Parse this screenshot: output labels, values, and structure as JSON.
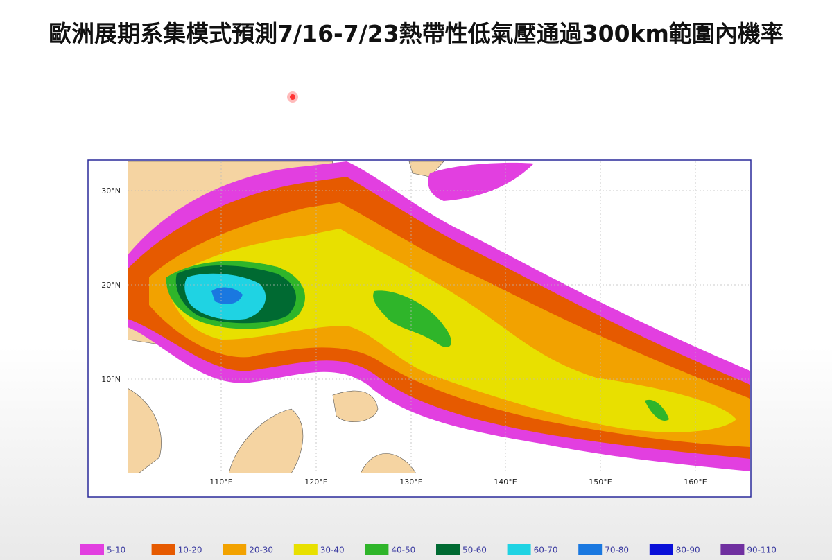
{
  "title": "歐洲展期系集模式預測7/16-7/23熱帶性低氣壓通過300km範圍內機率",
  "map": {
    "lat_labels": [
      "30°N",
      "20°N",
      "10°N"
    ],
    "lon_labels": [
      "110°E",
      "120°E",
      "130°E",
      "140°E",
      "150°E",
      "160°E"
    ]
  },
  "legend": [
    {
      "label": "5-10",
      "color": "#e23fe0"
    },
    {
      "label": "10-20",
      "color": "#e65a00"
    },
    {
      "label": "20-30",
      "color": "#f2a200"
    },
    {
      "label": "30-40",
      "color": "#e8e000"
    },
    {
      "label": "40-50",
      "color": "#2fb52a"
    },
    {
      "label": "50-60",
      "color": "#006a32"
    },
    {
      "label": "60-70",
      "color": "#1fd3e3"
    },
    {
      "label": "70-80",
      "color": "#1a78e0"
    },
    {
      "label": "80-90",
      "color": "#0a10d8"
    },
    {
      "label": "90-110",
      "color": "#7030a0"
    }
  ]
}
